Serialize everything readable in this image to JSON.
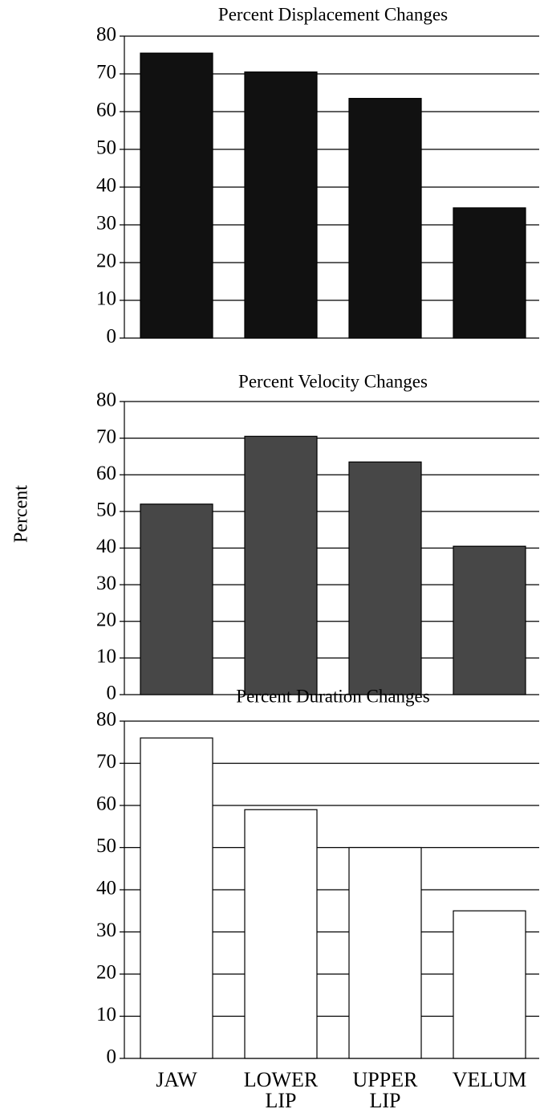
{
  "y_label": "Percent",
  "chart_data": [
    {
      "type": "bar",
      "title": "Percent Displacement Changes",
      "values": [
        75.5,
        70.5,
        63.5,
        34.5
      ],
      "color": "#111111",
      "ylim": [
        0,
        80
      ],
      "yticks": [
        0,
        10,
        20,
        30,
        40,
        50,
        60,
        70,
        80
      ],
      "grid": true
    },
    {
      "type": "bar",
      "title": "Percent Velocity Changes",
      "values": [
        52,
        70.5,
        63.5,
        40.5
      ],
      "color": "#474747",
      "ylim": [
        0,
        80
      ],
      "yticks": [
        0,
        10,
        20,
        30,
        40,
        50,
        60,
        70,
        80
      ],
      "grid": true
    },
    {
      "type": "bar",
      "title": "Percent Duration Changes",
      "categories": [
        "JAW",
        "LOWER LIP",
        "UPPER LIP",
        "VELUM"
      ],
      "values": [
        76,
        59,
        50,
        35
      ],
      "color": "#ffffff",
      "ylim": [
        0,
        80
      ],
      "yticks": [
        0,
        10,
        20,
        30,
        40,
        50,
        60,
        70,
        80
      ],
      "grid": true
    }
  ]
}
